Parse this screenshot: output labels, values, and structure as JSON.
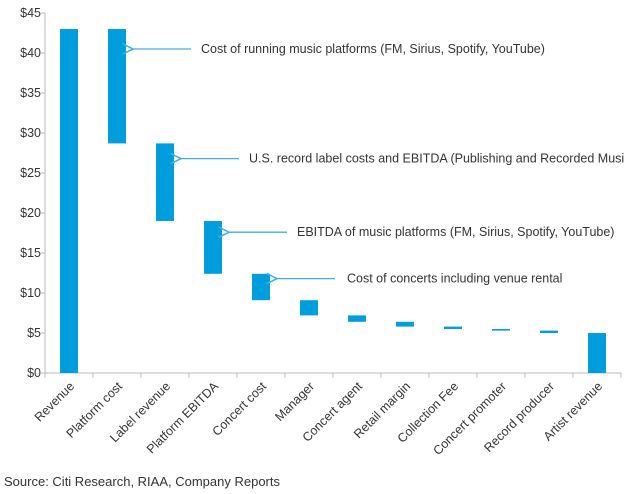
{
  "chart_data": {
    "type": "bar",
    "subtype": "waterfall",
    "title": "",
    "xlabel": "",
    "ylabel": "",
    "ylim": [
      0,
      45
    ],
    "yticks": [
      "$0",
      "$5",
      "$10",
      "$15",
      "$20",
      "$25",
      "$30",
      "$35",
      "$40",
      "$45"
    ],
    "ytick_values": [
      0,
      5,
      10,
      15,
      20,
      25,
      30,
      35,
      40,
      45
    ],
    "categories": [
      "Revenue",
      "Platform cost",
      "Label revenue",
      "Platform EBITDA",
      "Concert cost",
      "Manager",
      "Concert agent",
      "Retail margin",
      "Collection  Fee",
      "Concert promoter",
      "Record producer",
      "Artist revenue"
    ],
    "ranges": [
      [
        0,
        43
      ],
      [
        28.7,
        43
      ],
      [
        19,
        28.7
      ],
      [
        12.4,
        19
      ],
      [
        9.1,
        12.4
      ],
      [
        7.2,
        9.1
      ],
      [
        6.4,
        7.2
      ],
      [
        5.8,
        6.4
      ],
      [
        5.5,
        5.8
      ],
      [
        5.3,
        5.5
      ],
      [
        5.0,
        5.3
      ],
      [
        0,
        5.0
      ]
    ],
    "color": "#009ddc",
    "annotations": [
      {
        "category": 1,
        "value": 40.5,
        "text": "Cost of running  music platforms (FM, Sirius, Spotify, YouTube)"
      },
      {
        "category": 2,
        "value": 26.8,
        "text": "U.S. record label costs and EBITDA (Publishing and Recorded Music)"
      },
      {
        "category": 3,
        "value": 17.6,
        "text": "EBITDA of music platforms (FM, Sirius, Spotify, YouTube)"
      },
      {
        "category": 4,
        "value": 11.8,
        "text": "Cost of concerts including venue rental"
      }
    ],
    "arrow_color": "#3fb0e6",
    "grid": false
  },
  "source": "Source: Citi Research, RIAA, Company Reports"
}
